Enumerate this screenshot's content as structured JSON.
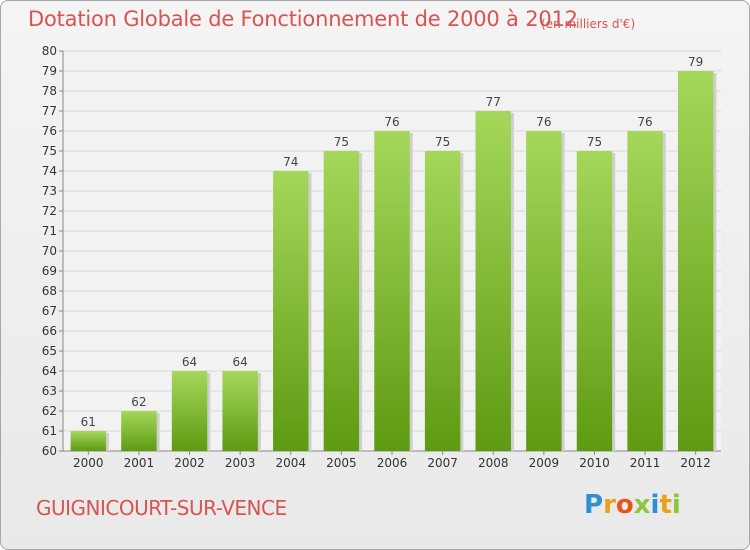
{
  "title": "Dotation Globale de Fonctionnement de 2000 à 2012",
  "unit": "(en milliers d'€)",
  "commune": "GUIGNICOURT-SUR-VENCE",
  "logo": {
    "letters": [
      "P",
      "r",
      "o",
      "x",
      "i",
      "t",
      "i"
    ],
    "colors": [
      "#2f8fd1",
      "#e8a21a",
      "#e8551a",
      "#8cc63f",
      "#2f8fd1",
      "#e8a21a",
      "#8cc63f"
    ]
  },
  "colors": {
    "title": "#d9534f",
    "bar_top": "#a5d75a",
    "bar_bottom": "#5e9a12",
    "grid": "#d8d8d8"
  },
  "chart_data": {
    "type": "bar",
    "categories": [
      "2000",
      "2001",
      "2002",
      "2003",
      "2004",
      "2005",
      "2006",
      "2007",
      "2008",
      "2009",
      "2010",
      "2011",
      "2012"
    ],
    "values": [
      61,
      62,
      64,
      64,
      74,
      75,
      76,
      75,
      77,
      76,
      75,
      76,
      79
    ],
    "ylim": [
      60,
      80
    ],
    "yticks": [
      60,
      61,
      62,
      63,
      64,
      65,
      66,
      67,
      68,
      69,
      70,
      71,
      72,
      73,
      74,
      75,
      76,
      77,
      78,
      79,
      80
    ],
    "grid": true
  }
}
